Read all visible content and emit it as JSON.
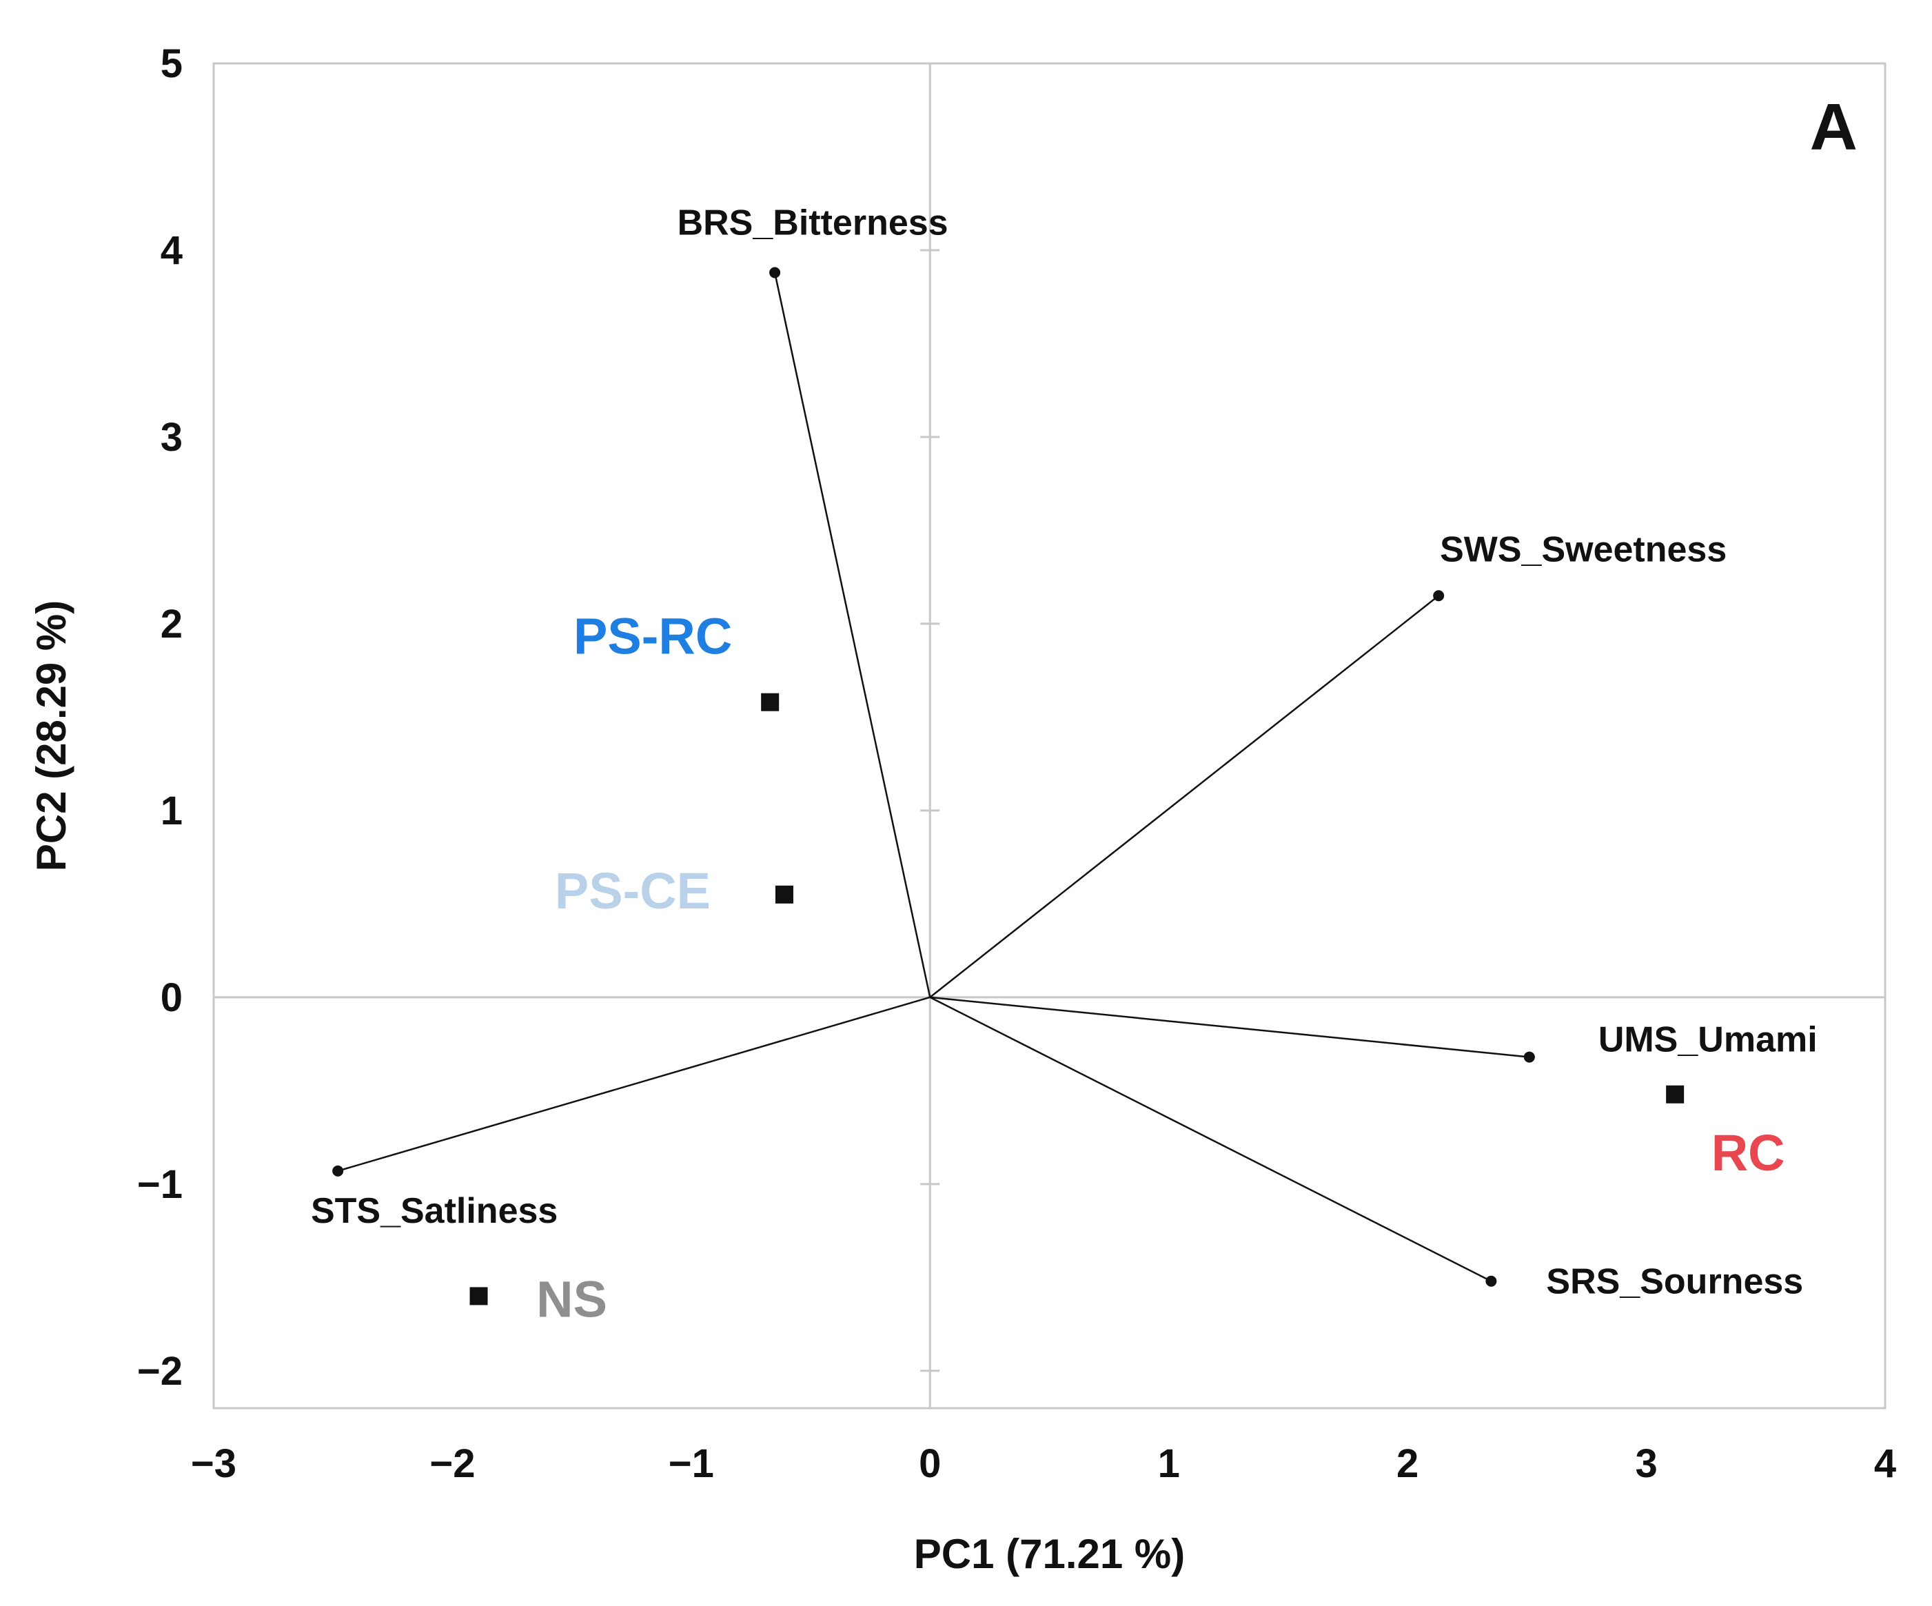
{
  "chart_data": {
    "type": "scatter",
    "subtype": "pca-biplot",
    "panel_label": "A",
    "xlabel": "PC1 (71.21 %)",
    "ylabel": "PC2 (28.29 %)",
    "xlim": [
      -3,
      4
    ],
    "ylim": [
      -2.2,
      5
    ],
    "x_ticks": [
      -3,
      -2,
      -1,
      0,
      1,
      2,
      3,
      4
    ],
    "y_ticks": [
      -2,
      -1,
      0,
      1,
      2,
      3,
      4,
      5
    ],
    "x_tick_labels": [
      "−3",
      "−2",
      "−1",
      "0",
      "1",
      "2",
      "3",
      "4"
    ],
    "y_tick_labels": [
      "−2",
      "−1",
      "0",
      "1",
      "2",
      "3",
      "4",
      "5"
    ],
    "loadings": [
      {
        "name": "BRS_Bitterness",
        "x": -0.65,
        "y": 3.88
      },
      {
        "name": "SWS_Sweetness",
        "x": 2.13,
        "y": 2.15
      },
      {
        "name": "UMS_Umami",
        "x": 2.51,
        "y": -0.32
      },
      {
        "name": "SRS_Sourness",
        "x": 2.35,
        "y": -1.52
      },
      {
        "name": "STS_Satliness",
        "x": -2.48,
        "y": -0.93
      }
    ],
    "samples": [
      {
        "name": "PS-RC",
        "x": -0.67,
        "y": 1.58,
        "color": "#1f7fe0"
      },
      {
        "name": "PS-CE",
        "x": -0.61,
        "y": 0.55,
        "color": "#b9d2ea"
      },
      {
        "name": "RC",
        "x": 3.12,
        "y": -0.52,
        "color": "#e8474f"
      },
      {
        "name": "NS",
        "x": -1.89,
        "y": -1.6,
        "color": "#8f8f8f"
      }
    ]
  }
}
